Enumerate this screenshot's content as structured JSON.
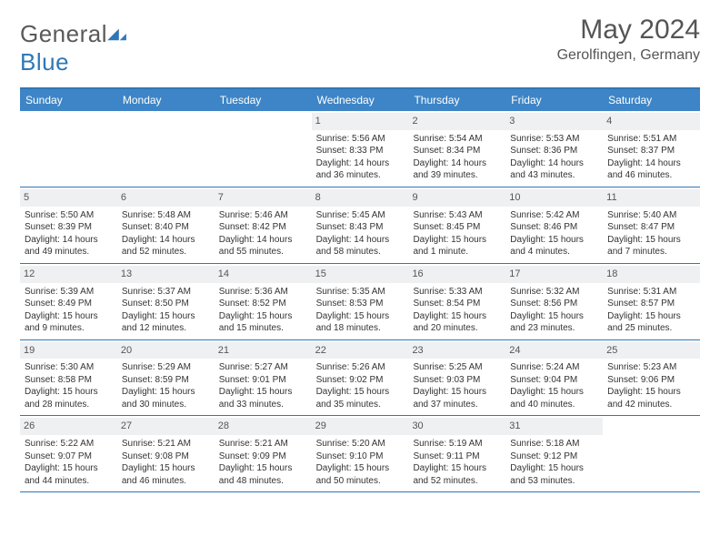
{
  "brand": {
    "name_a": "General",
    "name_b": "Blue"
  },
  "title": "May 2024",
  "subtitle": "Gerolfingen, Germany",
  "colors": {
    "header_bg": "#3d85c6",
    "rule": "#2f77b7",
    "daynum_bg": "#eef0f2",
    "text": "#333333",
    "page_bg": "#ffffff"
  },
  "weekdays": [
    "Sunday",
    "Monday",
    "Tuesday",
    "Wednesday",
    "Thursday",
    "Friday",
    "Saturday"
  ],
  "weeks": [
    [
      {
        "n": "",
        "empty": true
      },
      {
        "n": "",
        "empty": true
      },
      {
        "n": "",
        "empty": true
      },
      {
        "n": "1",
        "sunrise": "5:56 AM",
        "sunset": "8:33 PM",
        "daylight": "14 hours and 36 minutes."
      },
      {
        "n": "2",
        "sunrise": "5:54 AM",
        "sunset": "8:34 PM",
        "daylight": "14 hours and 39 minutes."
      },
      {
        "n": "3",
        "sunrise": "5:53 AM",
        "sunset": "8:36 PM",
        "daylight": "14 hours and 43 minutes."
      },
      {
        "n": "4",
        "sunrise": "5:51 AM",
        "sunset": "8:37 PM",
        "daylight": "14 hours and 46 minutes."
      }
    ],
    [
      {
        "n": "5",
        "sunrise": "5:50 AM",
        "sunset": "8:39 PM",
        "daylight": "14 hours and 49 minutes."
      },
      {
        "n": "6",
        "sunrise": "5:48 AM",
        "sunset": "8:40 PM",
        "daylight": "14 hours and 52 minutes."
      },
      {
        "n": "7",
        "sunrise": "5:46 AM",
        "sunset": "8:42 PM",
        "daylight": "14 hours and 55 minutes."
      },
      {
        "n": "8",
        "sunrise": "5:45 AM",
        "sunset": "8:43 PM",
        "daylight": "14 hours and 58 minutes."
      },
      {
        "n": "9",
        "sunrise": "5:43 AM",
        "sunset": "8:45 PM",
        "daylight": "15 hours and 1 minute."
      },
      {
        "n": "10",
        "sunrise": "5:42 AM",
        "sunset": "8:46 PM",
        "daylight": "15 hours and 4 minutes."
      },
      {
        "n": "11",
        "sunrise": "5:40 AM",
        "sunset": "8:47 PM",
        "daylight": "15 hours and 7 minutes."
      }
    ],
    [
      {
        "n": "12",
        "sunrise": "5:39 AM",
        "sunset": "8:49 PM",
        "daylight": "15 hours and 9 minutes."
      },
      {
        "n": "13",
        "sunrise": "5:37 AM",
        "sunset": "8:50 PM",
        "daylight": "15 hours and 12 minutes."
      },
      {
        "n": "14",
        "sunrise": "5:36 AM",
        "sunset": "8:52 PM",
        "daylight": "15 hours and 15 minutes."
      },
      {
        "n": "15",
        "sunrise": "5:35 AM",
        "sunset": "8:53 PM",
        "daylight": "15 hours and 18 minutes."
      },
      {
        "n": "16",
        "sunrise": "5:33 AM",
        "sunset": "8:54 PM",
        "daylight": "15 hours and 20 minutes."
      },
      {
        "n": "17",
        "sunrise": "5:32 AM",
        "sunset": "8:56 PM",
        "daylight": "15 hours and 23 minutes."
      },
      {
        "n": "18",
        "sunrise": "5:31 AM",
        "sunset": "8:57 PM",
        "daylight": "15 hours and 25 minutes."
      }
    ],
    [
      {
        "n": "19",
        "sunrise": "5:30 AM",
        "sunset": "8:58 PM",
        "daylight": "15 hours and 28 minutes."
      },
      {
        "n": "20",
        "sunrise": "5:29 AM",
        "sunset": "8:59 PM",
        "daylight": "15 hours and 30 minutes."
      },
      {
        "n": "21",
        "sunrise": "5:27 AM",
        "sunset": "9:01 PM",
        "daylight": "15 hours and 33 minutes."
      },
      {
        "n": "22",
        "sunrise": "5:26 AM",
        "sunset": "9:02 PM",
        "daylight": "15 hours and 35 minutes."
      },
      {
        "n": "23",
        "sunrise": "5:25 AM",
        "sunset": "9:03 PM",
        "daylight": "15 hours and 37 minutes."
      },
      {
        "n": "24",
        "sunrise": "5:24 AM",
        "sunset": "9:04 PM",
        "daylight": "15 hours and 40 minutes."
      },
      {
        "n": "25",
        "sunrise": "5:23 AM",
        "sunset": "9:06 PM",
        "daylight": "15 hours and 42 minutes."
      }
    ],
    [
      {
        "n": "26",
        "sunrise": "5:22 AM",
        "sunset": "9:07 PM",
        "daylight": "15 hours and 44 minutes."
      },
      {
        "n": "27",
        "sunrise": "5:21 AM",
        "sunset": "9:08 PM",
        "daylight": "15 hours and 46 minutes."
      },
      {
        "n": "28",
        "sunrise": "5:21 AM",
        "sunset": "9:09 PM",
        "daylight": "15 hours and 48 minutes."
      },
      {
        "n": "29",
        "sunrise": "5:20 AM",
        "sunset": "9:10 PM",
        "daylight": "15 hours and 50 minutes."
      },
      {
        "n": "30",
        "sunrise": "5:19 AM",
        "sunset": "9:11 PM",
        "daylight": "15 hours and 52 minutes."
      },
      {
        "n": "31",
        "sunrise": "5:18 AM",
        "sunset": "9:12 PM",
        "daylight": "15 hours and 53 minutes."
      },
      {
        "n": "",
        "empty": true
      }
    ]
  ],
  "labels": {
    "sunrise": "Sunrise: ",
    "sunset": "Sunset: ",
    "daylight": "Daylight: "
  }
}
